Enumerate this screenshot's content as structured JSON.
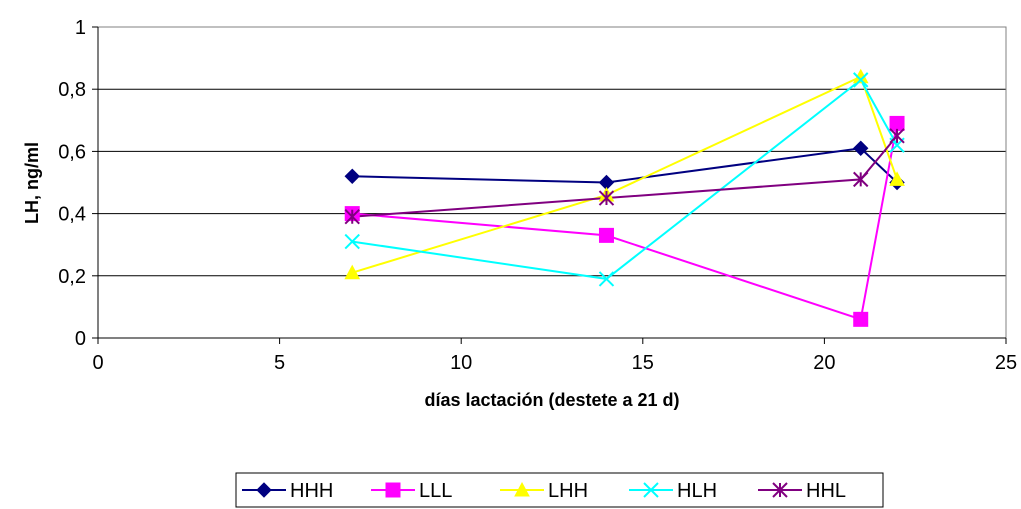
{
  "chart_data": {
    "type": "line",
    "xlabel": "días lactación (destete a 21 d)",
    "ylabel": "LH, ng/ml",
    "xlim": [
      0,
      25
    ],
    "ylim": [
      0,
      1
    ],
    "x_ticks": [
      "0",
      "5",
      "10",
      "15",
      "20",
      "25"
    ],
    "y_ticks": [
      "0",
      "0,2",
      "0,4",
      "0,6",
      "0,8",
      "1"
    ],
    "x_tick_values": [
      0,
      5,
      10,
      15,
      20,
      25
    ],
    "y_tick_values": [
      0,
      0.2,
      0.4,
      0.6,
      0.8,
      1
    ],
    "grid": "horizontal",
    "legend_position": "bottom",
    "series": [
      {
        "name": "HHH",
        "color": "#000080",
        "marker": "diamond",
        "x": [
          7,
          14,
          21,
          22
        ],
        "values": [
          0.52,
          0.5,
          0.61,
          0.5
        ]
      },
      {
        "name": "LLL",
        "color": "#FF00FF",
        "marker": "square",
        "x": [
          7,
          14,
          21,
          22
        ],
        "values": [
          0.4,
          0.33,
          0.06,
          0.69
        ]
      },
      {
        "name": "LHH",
        "color": "#FFFF00",
        "marker": "triangle",
        "x": [
          7,
          14,
          21,
          22
        ],
        "values": [
          0.21,
          0.46,
          0.84,
          0.51
        ]
      },
      {
        "name": "HLH",
        "color": "#00FFFF",
        "marker": "x",
        "x": [
          7,
          14,
          21,
          22
        ],
        "values": [
          0.31,
          0.19,
          0.83,
          0.62
        ]
      },
      {
        "name": "HHL",
        "color": "#800080",
        "marker": "star",
        "x": [
          7,
          14,
          21,
          22
        ],
        "values": [
          0.39,
          0.45,
          0.51,
          0.65
        ]
      }
    ]
  }
}
